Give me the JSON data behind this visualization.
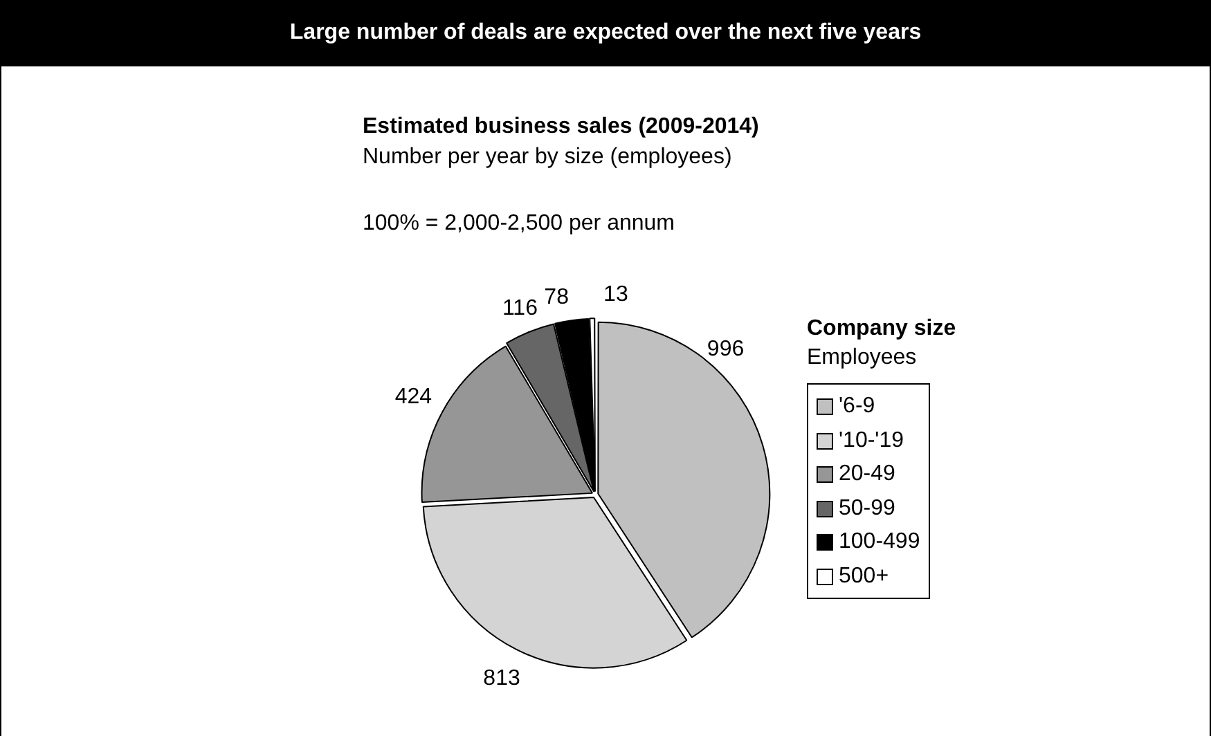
{
  "chart_data": {
    "type": "pie",
    "title": "Large number of deals are expected over the next five years",
    "subtitle": "Estimated business sales (2009-2014)",
    "legend_title": "Company size",
    "annotations": [
      "Number per year by size (employees)",
      "100% = 2,000-2,500 per annum",
      "Employees"
    ],
    "categories": [
      "'6-9",
      "'10-'19",
      "20-49",
      "50-99",
      "100-499",
      "500+"
    ],
    "values": [
      996,
      813,
      424,
      116,
      78,
      13
    ],
    "colors": [
      "#c0c0c0",
      "#d4d4d4",
      "#969696",
      "#666666",
      "#000000",
      "#ffffff"
    ],
    "data_labels": true,
    "legend": "right"
  }
}
